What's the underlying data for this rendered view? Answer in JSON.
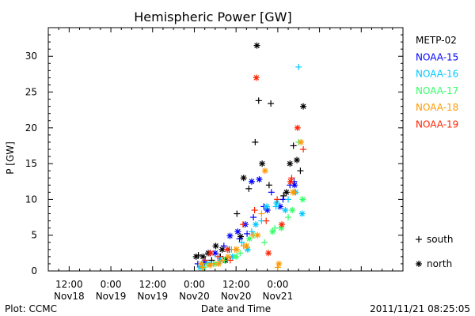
{
  "footer": {
    "plot_source": "Plot: CCMC",
    "timestamp": "2011/11/21 08:25:05"
  },
  "chart_data": {
    "type": "scatter",
    "title": "Hemispheric Power [GW]",
    "xlabel": "Date and Time",
    "ylabel": "P [GW]",
    "ylim": [
      0,
      34
    ],
    "xlim": [
      "2011-11-17T06:00",
      "2011-11-21T12:00"
    ],
    "yticks": [
      0,
      5,
      10,
      15,
      20,
      25,
      30
    ],
    "xticks": [
      {
        "x": "2011-11-17T12:00",
        "line1": "12:00",
        "line2": "Nov18"
      },
      {
        "x": "2011-11-18T00:00",
        "line1": "0:00",
        "line2": "Nov19"
      },
      {
        "x": "2011-11-18T12:00",
        "line1": "12:00",
        "line2": "Nov19"
      },
      {
        "x": "2011-11-19T00:00",
        "line1": "0:00",
        "line2": "Nov20"
      },
      {
        "x": "2011-11-19T12:00",
        "line1": "12:00",
        "line2": "Nov20"
      },
      {
        "x": "2011-11-20T00:00",
        "line1": "0:00",
        "line2": "Nov21"
      }
    ],
    "grid": false,
    "legend": {
      "placement": "right",
      "symbol_key": [
        {
          "symbol": "+",
          "label": "south"
        },
        {
          "symbol": "*",
          "label": "north"
        }
      ]
    },
    "series": [
      {
        "name": "METP-02",
        "color": "#000000",
        "south": [
          [
            "2011-11-19T01:10",
            2.2
          ],
          [
            "2011-11-19T05:00",
            1.5
          ],
          [
            "2011-11-19T07:30",
            2.0
          ],
          [
            "2011-11-19T10:00",
            3.0
          ],
          [
            "2011-11-19T12:15",
            8.0
          ],
          [
            "2011-11-19T15:40",
            11.5
          ],
          [
            "2011-11-19T17:30",
            18.0
          ],
          [
            "2011-11-19T18:30",
            23.8
          ],
          [
            "2011-11-19T21:30",
            12.0
          ],
          [
            "2011-11-19T22:00",
            23.4
          ],
          [
            "2011-11-20T01:40",
            10.5
          ],
          [
            "2011-11-20T04:30",
            17.5
          ],
          [
            "2011-11-20T06:30",
            14.0
          ]
        ],
        "north": [
          [
            "2011-11-19T00:30",
            2.0
          ],
          [
            "2011-11-19T02:30",
            2.0
          ],
          [
            "2011-11-19T04:00",
            2.5
          ],
          [
            "2011-11-19T06:10",
            3.5
          ],
          [
            "2011-11-19T08:00",
            3.0
          ],
          [
            "2011-11-19T09:00",
            1.5
          ],
          [
            "2011-11-19T13:20",
            4.8
          ],
          [
            "2011-11-19T14:10",
            13.0
          ],
          [
            "2011-11-19T18:00",
            31.5
          ],
          [
            "2011-11-19T19:30",
            15.0
          ],
          [
            "2011-11-20T02:30",
            11.0
          ],
          [
            "2011-11-20T03:30",
            15.0
          ],
          [
            "2011-11-20T05:30",
            15.5
          ],
          [
            "2011-11-20T07:20",
            23.0
          ]
        ]
      },
      {
        "name": "NOAA-15",
        "color": "#0000ff",
        "south": [
          [
            "2011-11-19T01:00",
            1.0
          ],
          [
            "2011-11-19T04:30",
            2.5
          ],
          [
            "2011-11-19T08:30",
            3.5
          ],
          [
            "2011-11-19T13:00",
            4.5
          ],
          [
            "2011-11-19T15:10",
            5.2
          ],
          [
            "2011-11-19T17:00",
            7.5
          ],
          [
            "2011-11-19T20:00",
            9.0
          ],
          [
            "2011-11-19T22:10",
            11.0
          ],
          [
            "2011-11-20T01:30",
            10.0
          ],
          [
            "2011-11-20T03:30",
            12.0
          ],
          [
            "2011-11-20T04:40",
            12.5
          ]
        ],
        "north": [
          [
            "2011-11-19T03:00",
            1.2
          ],
          [
            "2011-11-19T06:00",
            2.5
          ],
          [
            "2011-11-19T10:15",
            4.9
          ],
          [
            "2011-11-19T12:30",
            5.5
          ],
          [
            "2011-11-19T14:40",
            6.5
          ],
          [
            "2011-11-19T16:30",
            12.5
          ],
          [
            "2011-11-19T18:40",
            12.8
          ],
          [
            "2011-11-19T21:00",
            8.5
          ],
          [
            "2011-11-20T00:40",
            9.0
          ],
          [
            "2011-11-20T04:50",
            12.0
          ]
        ]
      },
      {
        "name": "NOAA-16",
        "color": "#00c8ff",
        "south": [
          [
            "2011-11-19T02:10",
            1.0
          ],
          [
            "2011-11-19T06:40",
            2.0
          ],
          [
            "2011-11-19T10:40",
            3.0
          ],
          [
            "2011-11-19T13:40",
            4.0
          ],
          [
            "2011-11-19T16:30",
            5.5
          ],
          [
            "2011-11-19T19:20",
            7.0
          ],
          [
            "2011-11-19T23:30",
            9.0
          ],
          [
            "2011-11-20T03:00",
            10.0
          ],
          [
            "2011-11-20T06:00",
            28.5
          ]
        ],
        "north": [
          [
            "2011-11-19T01:40",
            0.5
          ],
          [
            "2011-11-19T04:30",
            1.0
          ],
          [
            "2011-11-19T07:30",
            1.5
          ],
          [
            "2011-11-19T11:00",
            2.0
          ],
          [
            "2011-11-19T15:20",
            3.0
          ],
          [
            "2011-11-19T17:40",
            6.5
          ],
          [
            "2011-11-19T20:50",
            9.0
          ],
          [
            "2011-11-19T23:40",
            9.5
          ],
          [
            "2011-11-20T02:10",
            8.5
          ],
          [
            "2011-11-20T05:10",
            11.0
          ],
          [
            "2011-11-20T07:00",
            8.0
          ]
        ]
      },
      {
        "name": "NOAA-17",
        "color": "#33ff66",
        "south": [
          [
            "2011-11-19T03:40",
            1.0
          ],
          [
            "2011-11-19T08:40",
            1.5
          ],
          [
            "2011-11-19T13:10",
            2.5
          ],
          [
            "2011-11-19T17:10",
            5.0
          ],
          [
            "2011-11-19T20:10",
            4.0
          ],
          [
            "2011-11-19T23:10",
            6.0
          ],
          [
            "2011-11-20T03:00",
            7.5
          ],
          [
            "2011-11-20T06:00",
            18.0
          ]
        ],
        "north": [
          [
            "2011-11-19T02:40",
            0.5
          ],
          [
            "2011-11-19T06:00",
            1.0
          ],
          [
            "2011-11-19T12:00",
            2.0
          ],
          [
            "2011-11-19T15:50",
            4.5
          ],
          [
            "2011-11-19T22:30",
            5.5
          ],
          [
            "2011-11-20T01:00",
            6.0
          ],
          [
            "2011-11-20T04:10",
            8.5
          ],
          [
            "2011-11-20T07:10",
            10.0
          ]
        ]
      },
      {
        "name": "NOAA-18",
        "color": "#ff9900",
        "south": [
          [
            "2011-11-19T02:20",
            0.5
          ],
          [
            "2011-11-19T05:30",
            1.0
          ],
          [
            "2011-11-19T08:00",
            1.5
          ],
          [
            "2011-11-19T11:40",
            3.0
          ],
          [
            "2011-11-19T14:10",
            3.5
          ],
          [
            "2011-11-19T16:50",
            5.0
          ],
          [
            "2011-11-19T19:20",
            8.0
          ],
          [
            "2011-11-20T00:00",
            0.5
          ],
          [
            "2011-11-20T04:50",
            11.0
          ]
        ],
        "north": [
          [
            "2011-11-19T02:00",
            1.0
          ],
          [
            "2011-11-19T04:30",
            0.8
          ],
          [
            "2011-11-19T07:00",
            1.0
          ],
          [
            "2011-11-19T09:40",
            2.0
          ],
          [
            "2011-11-19T12:10",
            3.0
          ],
          [
            "2011-11-19T15:00",
            3.5
          ],
          [
            "2011-11-19T18:10",
            5.0
          ],
          [
            "2011-11-19T20:20",
            14.0
          ],
          [
            "2011-11-20T00:20",
            1.0
          ],
          [
            "2011-11-20T04:20",
            11.0
          ],
          [
            "2011-11-20T06:40",
            18.0
          ]
        ]
      },
      {
        "name": "NOAA-19",
        "color": "#ff2200",
        "south": [
          [
            "2011-11-19T03:10",
            1.5
          ],
          [
            "2011-11-19T07:10",
            2.0
          ],
          [
            "2011-11-19T10:20",
            1.5
          ],
          [
            "2011-11-19T14:00",
            6.5
          ],
          [
            "2011-11-19T17:20",
            8.5
          ],
          [
            "2011-11-19T20:40",
            7.0
          ],
          [
            "2011-11-19T23:50",
            10.0
          ],
          [
            "2011-11-20T04:00",
            13.0
          ],
          [
            "2011-11-20T07:20",
            17.0
          ]
        ],
        "north": [
          [
            "2011-11-19T04:40",
            2.5
          ],
          [
            "2011-11-19T09:30",
            3.0
          ],
          [
            "2011-11-19T17:50",
            27.0
          ],
          [
            "2011-11-19T21:20",
            2.5
          ],
          [
            "2011-11-20T01:10",
            6.5
          ],
          [
            "2011-11-20T03:40",
            12.5
          ],
          [
            "2011-11-20T05:40",
            20.0
          ]
        ]
      }
    ]
  }
}
